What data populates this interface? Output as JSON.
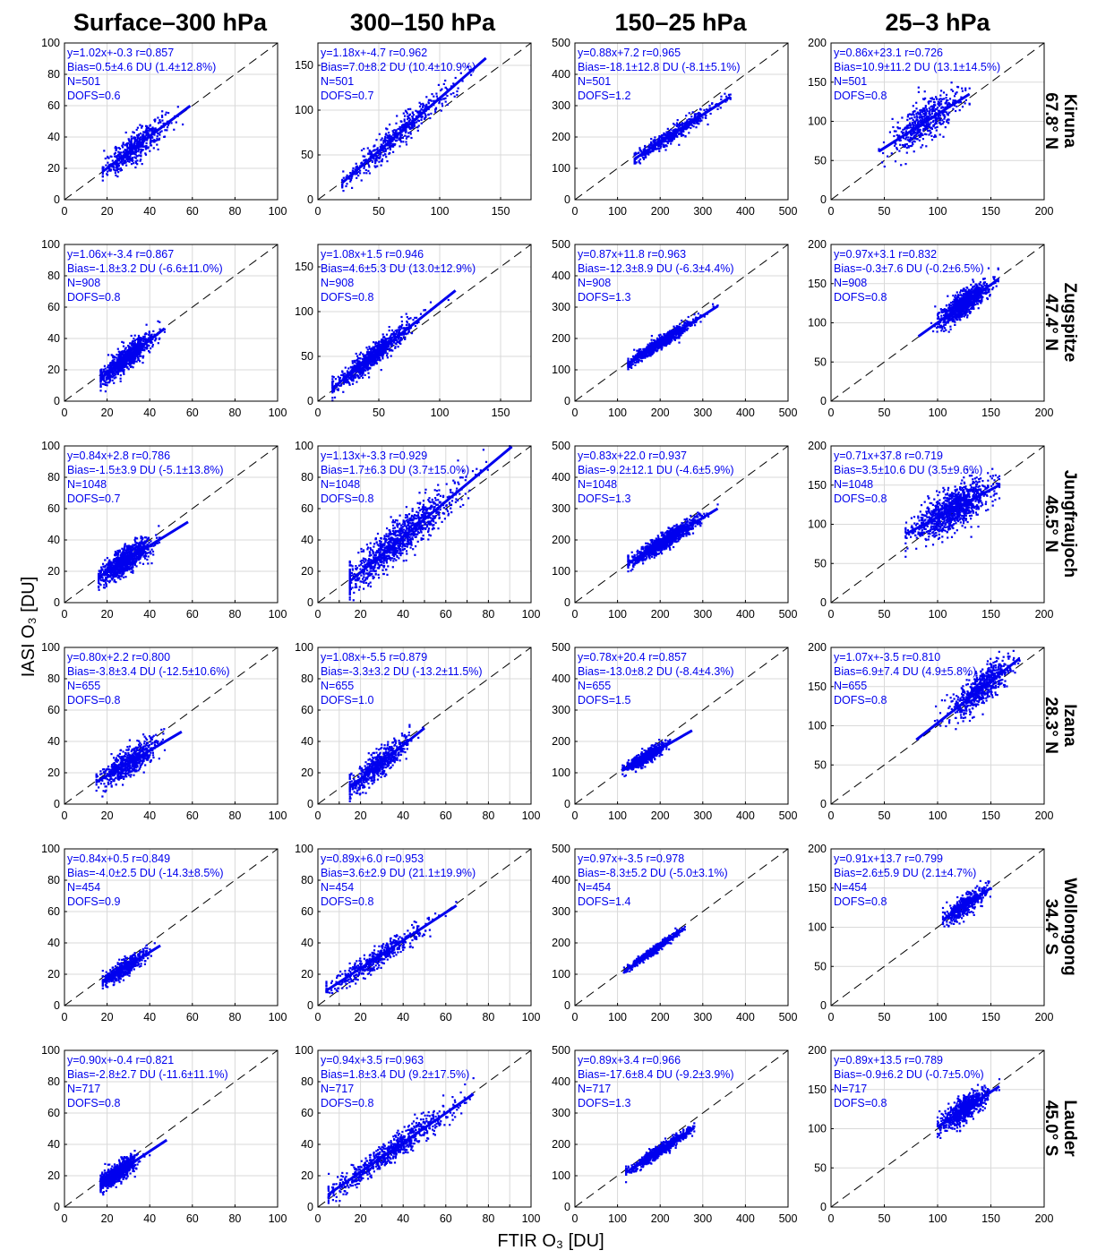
{
  "columns": [
    "Surface–300 hPa",
    "300–150 hPa",
    "150–25 hPa",
    "25–3 hPa"
  ],
  "rows": [
    {
      "station": "Kiruna",
      "lat": "67.8° N"
    },
    {
      "station": "Zugspitze",
      "lat": "47.4° N"
    },
    {
      "station": "Jungfraujoch",
      "lat": "46.5° N"
    },
    {
      "station": "Izana",
      "lat": "28.3° N"
    },
    {
      "station": "Wollongong",
      "lat": "34.4° S"
    },
    {
      "station": "Lauder",
      "lat": "45.0° S"
    }
  ],
  "xlabel": "FTIR O₃ [DU]",
  "ylabel": "IASI O₃ [DU]",
  "colors": {
    "points": "#0000ee",
    "fit": "#0000ee",
    "diagonal": "#000000",
    "grid": "#d9d9d9"
  },
  "chart_data": [
    {
      "type": "scatter",
      "row": 0,
      "col": 0,
      "xlim": [
        0,
        100
      ],
      "ylim": [
        0,
        100
      ],
      "xticks": [
        0,
        20,
        40,
        60,
        80,
        100
      ],
      "yticks": [
        0,
        20,
        40,
        60,
        80,
        100
      ],
      "slope": 1.02,
      "intercept": -0.3,
      "r": 0.857,
      "n": 501,
      "xmean": 33,
      "xsd": 7.5,
      "xrange": [
        18,
        59
      ],
      "stats": [
        "y=1.02x+-0.3  r=0.857",
        "Bias=0.5±4.6 DU (1.4±12.8%)",
        "N=501",
        "DOFS=0.6"
      ]
    },
    {
      "type": "scatter",
      "row": 0,
      "col": 1,
      "xlim": [
        0,
        175
      ],
      "ylim": [
        0,
        175
      ],
      "xticks": [
        0,
        50,
        100,
        150
      ],
      "yticks": [
        0,
        50,
        100,
        150
      ],
      "slope": 1.18,
      "intercept": -4.7,
      "r": 0.962,
      "n": 501,
      "xmean": 65,
      "xsd": 22,
      "xrange": [
        20,
        138
      ],
      "stats": [
        "y=1.18x+-4.7  r=0.962",
        "Bias=7.0±8.2 DU (10.4±10.9%)",
        "N=501",
        "DOFS=0.7"
      ]
    },
    {
      "type": "scatter",
      "row": 0,
      "col": 2,
      "xlim": [
        0,
        500
      ],
      "ylim": [
        0,
        500
      ],
      "xticks": [
        0,
        100,
        200,
        300,
        400,
        500
      ],
      "yticks": [
        0,
        100,
        200,
        300,
        400,
        500
      ],
      "slope": 0.88,
      "intercept": 7.2,
      "r": 0.965,
      "n": 501,
      "xmean": 225,
      "xsd": 50,
      "xrange": [
        140,
        365
      ],
      "stats": [
        "y=0.88x+7.2  r=0.965",
        "Bias=-18.1±12.8 DU (-8.1±5.1%)",
        "N=501",
        "DOFS=1.2"
      ]
    },
    {
      "type": "scatter",
      "row": 0,
      "col": 3,
      "xlim": [
        0,
        200
      ],
      "ylim": [
        0,
        200
      ],
      "xticks": [
        0,
        50,
        100,
        150,
        200
      ],
      "yticks": [
        0,
        50,
        100,
        150,
        200
      ],
      "slope": 0.86,
      "intercept": 23.1,
      "r": 0.726,
      "n": 501,
      "xmean": 88,
      "xsd": 16,
      "xrange": [
        45,
        130
      ],
      "stats": [
        "y=0.86x+23.1  r=0.726",
        "Bias=10.9±11.2 DU (13.1±14.5%)",
        "N=501",
        "DOFS=0.8"
      ]
    },
    {
      "type": "scatter",
      "row": 1,
      "col": 0,
      "xlim": [
        0,
        100
      ],
      "ylim": [
        0,
        100
      ],
      "xticks": [
        0,
        20,
        40,
        60,
        80,
        100
      ],
      "yticks": [
        0,
        20,
        40,
        60,
        80,
        100
      ],
      "slope": 1.06,
      "intercept": -3.4,
      "r": 0.867,
      "n": 908,
      "xmean": 29,
      "xsd": 6,
      "xrange": [
        17,
        47
      ],
      "stats": [
        "y=1.06x+-3.4  r=0.867",
        "Bias=-1.8±3.2 DU (-6.6±11.0%)",
        "N=908",
        "DOFS=0.8"
      ]
    },
    {
      "type": "scatter",
      "row": 1,
      "col": 1,
      "xlim": [
        0,
        175
      ],
      "ylim": [
        0,
        175
      ],
      "xticks": [
        0,
        50,
        100,
        150
      ],
      "yticks": [
        0,
        50,
        100,
        150
      ],
      "slope": 1.08,
      "intercept": 1.5,
      "r": 0.946,
      "n": 908,
      "xmean": 45,
      "xsd": 16,
      "xrange": [
        12,
        113
      ],
      "stats": [
        "y=1.08x+1.5  r=0.946",
        "Bias=4.6±5.3 DU (13.0±12.9%)",
        "N=908",
        "DOFS=0.8"
      ]
    },
    {
      "type": "scatter",
      "row": 1,
      "col": 2,
      "xlim": [
        0,
        500
      ],
      "ylim": [
        0,
        500
      ],
      "xticks": [
        0,
        100,
        200,
        300,
        400,
        500
      ],
      "yticks": [
        0,
        100,
        200,
        300,
        400,
        500
      ],
      "slope": 0.87,
      "intercept": 11.8,
      "r": 0.963,
      "n": 908,
      "xmean": 200,
      "xsd": 40,
      "xrange": [
        125,
        335
      ],
      "stats": [
        "y=0.87x+11.8  r=0.963",
        "Bias=-12.3±8.9 DU (-6.3±4.4%)",
        "N=908",
        "DOFS=1.3"
      ]
    },
    {
      "type": "scatter",
      "row": 1,
      "col": 3,
      "xlim": [
        0,
        200
      ],
      "ylim": [
        0,
        200
      ],
      "xticks": [
        0,
        50,
        100,
        150,
        200
      ],
      "yticks": [
        0,
        50,
        100,
        150,
        200
      ],
      "slope": 0.97,
      "intercept": 3.1,
      "r": 0.832,
      "n": 908,
      "xmean": 125,
      "xsd": 12,
      "xrange": [
        82,
        157
      ],
      "stats": [
        "y=0.97x+3.1  r=0.832",
        "Bias=-0.3±7.6 DU (-0.2±6.5%)",
        "N=908",
        "DOFS=0.8"
      ]
    },
    {
      "type": "scatter",
      "row": 2,
      "col": 0,
      "xlim": [
        0,
        100
      ],
      "ylim": [
        0,
        100
      ],
      "xticks": [
        0,
        20,
        40,
        60,
        80,
        100
      ],
      "yticks": [
        0,
        20,
        40,
        60,
        80,
        100
      ],
      "slope": 0.84,
      "intercept": 2.8,
      "r": 0.786,
      "n": 1048,
      "xmean": 28,
      "xsd": 6,
      "xrange": [
        16,
        58
      ],
      "stats": [
        "y=0.84x+2.8  r=0.786",
        "Bias=-1.5±3.9 DU (-5.1±13.8%)",
        "N=1048",
        "DOFS=0.7"
      ]
    },
    {
      "type": "scatter",
      "row": 2,
      "col": 1,
      "xlim": [
        0,
        100
      ],
      "ylim": [
        0,
        100
      ],
      "xticks": [
        0,
        10,
        20,
        30,
        40,
        50,
        60,
        70,
        80,
        90,
        100
      ],
      "xticklabels": [
        "0",
        "",
        "20",
        "",
        "40",
        "",
        "60",
        "",
        "80",
        "",
        "100"
      ],
      "yticks": [
        0,
        20,
        40,
        60,
        80,
        100
      ],
      "slope": 1.13,
      "intercept": -3.3,
      "r": 0.929,
      "n": 1048,
      "xmean": 38,
      "xsd": 14,
      "xrange": [
        15,
        91
      ],
      "stats": [
        "y=1.13x+-3.3  r=0.929",
        "Bias=1.7±6.3 DU (3.7±15.0%)",
        "N=1048",
        "DOFS=0.8"
      ]
    },
    {
      "type": "scatter",
      "row": 2,
      "col": 2,
      "xlim": [
        0,
        500
      ],
      "ylim": [
        0,
        500
      ],
      "xticks": [
        0,
        100,
        200,
        300,
        400,
        500
      ],
      "yticks": [
        0,
        100,
        200,
        300,
        400,
        500
      ],
      "slope": 0.83,
      "intercept": 22.0,
      "r": 0.937,
      "n": 1048,
      "xmean": 205,
      "xsd": 40,
      "xrange": [
        125,
        335
      ],
      "stats": [
        "y=0.83x+22.0  r=0.937",
        "Bias=-9.2±12.1 DU (-4.6±5.9%)",
        "N=1048",
        "DOFS=1.3"
      ]
    },
    {
      "type": "scatter",
      "row": 2,
      "col": 3,
      "xlim": [
        0,
        200
      ],
      "ylim": [
        0,
        200
      ],
      "xticks": [
        0,
        50,
        100,
        150,
        200
      ],
      "yticks": [
        0,
        50,
        100,
        150,
        200
      ],
      "slope": 0.71,
      "intercept": 37.8,
      "r": 0.719,
      "n": 1048,
      "xmean": 115,
      "xsd": 18,
      "xrange": [
        70,
        158
      ],
      "stats": [
        "y=0.71x+37.8  r=0.719",
        "Bias=3.5±10.6 DU (3.5±9.6%)",
        "N=1048",
        "DOFS=0.8"
      ]
    },
    {
      "type": "scatter",
      "row": 3,
      "col": 0,
      "xlim": [
        0,
        100
      ],
      "ylim": [
        0,
        100
      ],
      "xticks": [
        0,
        20,
        40,
        60,
        80,
        100
      ],
      "yticks": [
        0,
        20,
        40,
        60,
        80,
        100
      ],
      "slope": 0.8,
      "intercept": 2.2,
      "r": 0.8,
      "n": 655,
      "xmean": 30,
      "xsd": 7,
      "xrange": [
        15,
        55
      ],
      "stats": [
        "y=0.80x+2.2  r=0.800",
        "Bias=-3.8±3.4 DU (-12.5±10.6%)",
        "N=655",
        "DOFS=0.8"
      ]
    },
    {
      "type": "scatter",
      "row": 3,
      "col": 1,
      "xlim": [
        0,
        100
      ],
      "ylim": [
        0,
        100
      ],
      "xticks": [
        0,
        10,
        20,
        30,
        40,
        50,
        60,
        70,
        80,
        90,
        100
      ],
      "xticklabels": [
        "0",
        "",
        "20",
        "",
        "40",
        "",
        "60",
        "",
        "80",
        "",
        "100"
      ],
      "yticks": [
        0,
        20,
        40,
        60,
        80,
        100
      ],
      "slope": 1.08,
      "intercept": -5.5,
      "r": 0.879,
      "n": 655,
      "xmean": 28,
      "xsd": 7,
      "xrange": [
        15,
        50
      ],
      "stats": [
        "y=1.08x+-5.5  r=0.879",
        "Bias=-3.3±3.2 DU (-13.2±11.5%)",
        "N=655",
        "DOFS=1.0"
      ]
    },
    {
      "type": "scatter",
      "row": 3,
      "col": 2,
      "xlim": [
        0,
        500
      ],
      "ylim": [
        0,
        500
      ],
      "xticks": [
        0,
        100,
        200,
        300,
        400,
        500
      ],
      "yticks": [
        0,
        100,
        200,
        300,
        400,
        500
      ],
      "slope": 0.78,
      "intercept": 20.4,
      "r": 0.857,
      "n": 655,
      "xmean": 165,
      "xsd": 22,
      "xrange": [
        112,
        275
      ],
      "stats": [
        "y=0.78x+20.4  r=0.857",
        "Bias=-13.0±8.2 DU (-8.4±4.3%)",
        "N=655",
        "DOFS=1.5"
      ]
    },
    {
      "type": "scatter",
      "row": 3,
      "col": 3,
      "xlim": [
        0,
        200
      ],
      "ylim": [
        0,
        200
      ],
      "xticks": [
        0,
        50,
        100,
        150,
        200
      ],
      "yticks": [
        0,
        50,
        100,
        150,
        200
      ],
      "slope": 1.07,
      "intercept": -3.5,
      "r": 0.81,
      "n": 655,
      "xmean": 140,
      "xsd": 14,
      "xrange": [
        80,
        177
      ],
      "stats": [
        "y=1.07x+-3.5  r=0.810",
        "Bias=6.9±7.4 DU (4.9±5.8%)",
        "N=655",
        "DOFS=0.8"
      ]
    },
    {
      "type": "scatter",
      "row": 4,
      "col": 0,
      "xlim": [
        0,
        100
      ],
      "ylim": [
        0,
        100
      ],
      "xticks": [
        0,
        20,
        40,
        60,
        80,
        100
      ],
      "yticks": [
        0,
        20,
        40,
        60,
        80,
        100
      ],
      "slope": 0.84,
      "intercept": 0.5,
      "r": 0.849,
      "n": 454,
      "xmean": 28,
      "xsd": 5.5,
      "xrange": [
        18,
        45
      ],
      "stats": [
        "y=0.84x+0.5  r=0.849",
        "Bias=-4.0±2.5 DU (-14.3±8.5%)",
        "N=454",
        "DOFS=0.9"
      ]
    },
    {
      "type": "scatter",
      "row": 4,
      "col": 1,
      "xlim": [
        0,
        100
      ],
      "ylim": [
        0,
        100
      ],
      "xticks": [
        0,
        10,
        20,
        30,
        40,
        50,
        60,
        70,
        80,
        90,
        100
      ],
      "xticklabels": [
        "0",
        "",
        "20",
        "",
        "40",
        "",
        "60",
        "",
        "80",
        "",
        "100"
      ],
      "yticks": [
        0,
        20,
        40,
        60,
        80,
        100
      ],
      "slope": 0.89,
      "intercept": 6.0,
      "r": 0.953,
      "n": 454,
      "xmean": 28,
      "xsd": 12,
      "xrange": [
        4,
        65
      ],
      "stats": [
        "y=0.89x+6.0  r=0.953",
        "Bias=3.6±2.9 DU (21.1±19.9%)",
        "N=454",
        "DOFS=0.8"
      ]
    },
    {
      "type": "scatter",
      "row": 4,
      "col": 2,
      "xlim": [
        0,
        500
      ],
      "ylim": [
        0,
        500
      ],
      "xticks": [
        0,
        100,
        200,
        300,
        400,
        500
      ],
      "yticks": [
        0,
        100,
        200,
        300,
        400,
        500
      ],
      "slope": 0.97,
      "intercept": -3.5,
      "r": 0.978,
      "n": 454,
      "xmean": 185,
      "xsd": 30,
      "xrange": [
        115,
        258
      ],
      "stats": [
        "y=0.97x+-3.5  r=0.978",
        "Bias=-8.3±5.2 DU (-5.0±3.1%)",
        "N=454",
        "DOFS=1.4"
      ]
    },
    {
      "type": "scatter",
      "row": 4,
      "col": 3,
      "xlim": [
        0,
        200
      ],
      "ylim": [
        0,
        200
      ],
      "xticks": [
        0,
        50,
        100,
        150,
        200
      ],
      "yticks": [
        0,
        50,
        100,
        150,
        200
      ],
      "slope": 0.91,
      "intercept": 13.7,
      "r": 0.799,
      "n": 454,
      "xmean": 125,
      "xsd": 10,
      "xrange": [
        105,
        150
      ],
      "stats": [
        "y=0.91x+13.7  r=0.799",
        "Bias=2.6±5.9 DU (2.1±4.7%)",
        "N=454",
        "DOFS=0.8"
      ]
    },
    {
      "type": "scatter",
      "row": 5,
      "col": 0,
      "xlim": [
        0,
        100
      ],
      "ylim": [
        0,
        100
      ],
      "xticks": [
        0,
        20,
        40,
        60,
        80,
        100
      ],
      "yticks": [
        0,
        20,
        40,
        60,
        80,
        100
      ],
      "slope": 0.9,
      "intercept": -0.4,
      "r": 0.821,
      "n": 717,
      "xmean": 25,
      "xsd": 5,
      "xrange": [
        17,
        48
      ],
      "stats": [
        "y=0.90x+-0.4  r=0.821",
        "Bias=-2.8±2.7 DU (-11.6±11.1%)",
        "N=717",
        "DOFS=0.8"
      ]
    },
    {
      "type": "scatter",
      "row": 5,
      "col": 1,
      "xlim": [
        0,
        100
      ],
      "ylim": [
        0,
        100
      ],
      "xticks": [
        0,
        10,
        20,
        30,
        40,
        50,
        60,
        70,
        80,
        90,
        100
      ],
      "xticklabels": [
        "0",
        "",
        "20",
        "",
        "40",
        "",
        "60",
        "",
        "80",
        "",
        "100"
      ],
      "yticks": [
        0,
        20,
        40,
        60,
        80,
        100
      ],
      "slope": 0.94,
      "intercept": 3.5,
      "r": 0.963,
      "n": 717,
      "xmean": 35,
      "xsd": 15,
      "xrange": [
        5,
        73
      ],
      "stats": [
        "y=0.94x+3.5  r=0.963",
        "Bias=1.8±3.4 DU (9.2±17.5%)",
        "N=717",
        "DOFS=0.8"
      ]
    },
    {
      "type": "scatter",
      "row": 5,
      "col": 2,
      "xlim": [
        0,
        500
      ],
      "ylim": [
        0,
        500
      ],
      "xticks": [
        0,
        100,
        200,
        300,
        400,
        500
      ],
      "yticks": [
        0,
        100,
        200,
        300,
        400,
        500
      ],
      "slope": 0.89,
      "intercept": 3.4,
      "r": 0.966,
      "n": 717,
      "xmean": 195,
      "xsd": 35,
      "xrange": [
        120,
        280
      ],
      "stats": [
        "y=0.89x+3.4  r=0.966",
        "Bias=-17.6±8.4 DU (-9.2±3.9%)",
        "N=717",
        "DOFS=1.3"
      ]
    },
    {
      "type": "scatter",
      "row": 5,
      "col": 3,
      "xlim": [
        0,
        200
      ],
      "ylim": [
        0,
        200
      ],
      "xticks": [
        0,
        50,
        100,
        150,
        200
      ],
      "yticks": [
        0,
        50,
        100,
        150,
        200
      ],
      "slope": 0.89,
      "intercept": 13.5,
      "r": 0.789,
      "n": 717,
      "xmean": 125,
      "xsd": 11,
      "xrange": [
        100,
        158
      ],
      "stats": [
        "y=0.89x+13.5  r=0.789",
        "Bias=-0.9±6.2 DU (-0.7±5.0%)",
        "N=717",
        "DOFS=0.8"
      ]
    }
  ]
}
